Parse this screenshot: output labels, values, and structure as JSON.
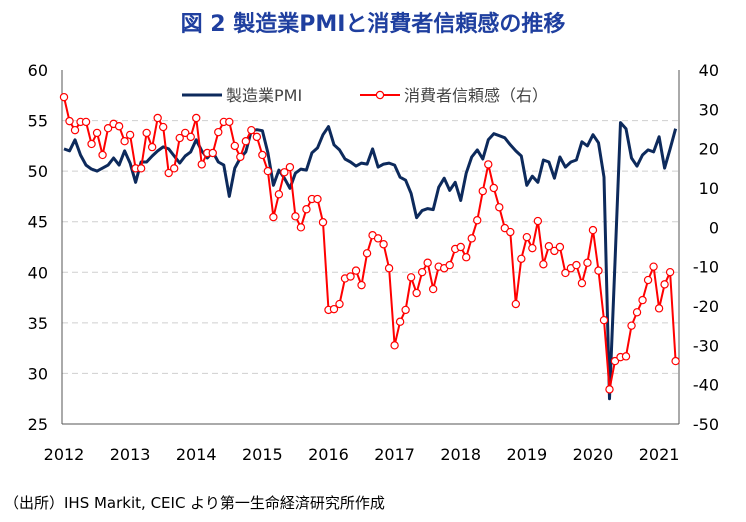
{
  "title": "図 2  製造業PMIと消費者信頼感の推移",
  "source": "（出所）IHS Markit, CEIC より第一生命経済研究所作成",
  "chart_data": {
    "type": "line",
    "x_start": "2012-01",
    "x_end": "2021-04",
    "x_frequency": "monthly",
    "x_tick_labels": [
      "2012",
      "2013",
      "2014",
      "2015",
      "2016",
      "2017",
      "2018",
      "2019",
      "2020",
      "2021"
    ],
    "y_left": {
      "ylim": [
        25,
        60
      ],
      "ticks": [
        25,
        30,
        35,
        40,
        45,
        50,
        55,
        60
      ]
    },
    "y_right": {
      "ylim": [
        -50,
        40
      ],
      "ticks": [
        -50,
        -40,
        -30,
        -20,
        -10,
        0,
        10,
        20,
        30,
        40
      ]
    },
    "grid": "horizontal dashed",
    "legend_placement": "top",
    "series": [
      {
        "name": "製造業PMI",
        "axis": "left",
        "color": "#0d2a5c",
        "marker": "none",
        "values": [
          52.2,
          52,
          53.1,
          51.6,
          50.6,
          50.2,
          50,
          50.3,
          50.6,
          51.3,
          50.6,
          52,
          50.8,
          48.9,
          50.9,
          50.9,
          51.5,
          52,
          52.4,
          52.2,
          51.5,
          50.8,
          51.5,
          51.9,
          53.1,
          52,
          51.3,
          51.9,
          50.9,
          50.6,
          47.5,
          50.3,
          51.3,
          51.9,
          54,
          54.1,
          54,
          51.8,
          48.6,
          50.1,
          49.3,
          48.3,
          49.8,
          50.2,
          50.1,
          51.8,
          52.3,
          53.6,
          54.4,
          52.6,
          52.1,
          51.2,
          50.9,
          50.5,
          50.8,
          50.7,
          52.2,
          50.4,
          50.7,
          50.8,
          50.6,
          49.4,
          49.1,
          47.8,
          45.4,
          46.1,
          46.3,
          46.2,
          48.4,
          49.3,
          48.1,
          48.9,
          47.1,
          49.8,
          51.4,
          52.1,
          51.2,
          53.1,
          53.7,
          53.5,
          53.3,
          52.6,
          52,
          51.5,
          48.6,
          49.5,
          48.9,
          51.1,
          50.9,
          49.3,
          51.4,
          50.4,
          50.9,
          51.1,
          52.9,
          52.5,
          53.6,
          52.8,
          49.4,
          27.5,
          41,
          54.8,
          54.2,
          51.3,
          50.5,
          51.6,
          52.1,
          51.9,
          53.4,
          50.3,
          52.2,
          54.2
        ]
      },
      {
        "name": "消費者信頼感（右）",
        "axis": "right",
        "color": "#ff0000",
        "marker": "open-circle",
        "values": [
          33.1,
          27,
          24.7,
          26.8,
          26.8,
          21.2,
          24,
          18.4,
          25.2,
          26.3,
          25.7,
          21.9,
          23.5,
          15,
          15,
          24,
          20.4,
          27.8,
          25.5,
          13.8,
          15,
          22.7,
          24,
          23,
          27.8,
          16,
          18.9,
          18.9,
          24.2,
          26.8,
          26.8,
          20.7,
          17.9,
          21.9,
          24.7,
          23,
          18.4,
          14.3,
          2.6,
          8.4,
          14,
          15.3,
          2.8,
          0,
          4.6,
          7.2,
          7.2,
          1.3,
          -21,
          -20.8,
          -19.5,
          -13,
          -12.5,
          -11,
          -14.7,
          -6.6,
          -2,
          -2.8,
          -4.3,
          -10.4,
          -30,
          -24,
          -21,
          -12.7,
          -16.7,
          -11.4,
          -9,
          -15.7,
          -10,
          -10.4,
          -9.6,
          -5.5,
          -5,
          -7.6,
          -2.8,
          1.8,
          9.2,
          16,
          10,
          5.1,
          -0.2,
          -1.2,
          -19.5,
          -8,
          -2.5,
          -5.3,
          1.6,
          -9.4,
          -4.8,
          -6,
          -5,
          -11.6,
          -10.4,
          -9.6,
          -14.2,
          -9,
          -0.7,
          -11,
          -23.6,
          -41.2,
          -34,
          -33,
          -32.8,
          -25,
          -21.6,
          -18.5,
          -13.4,
          -10,
          -20.6,
          -14.5,
          -11.4,
          -34
        ]
      }
    ]
  }
}
